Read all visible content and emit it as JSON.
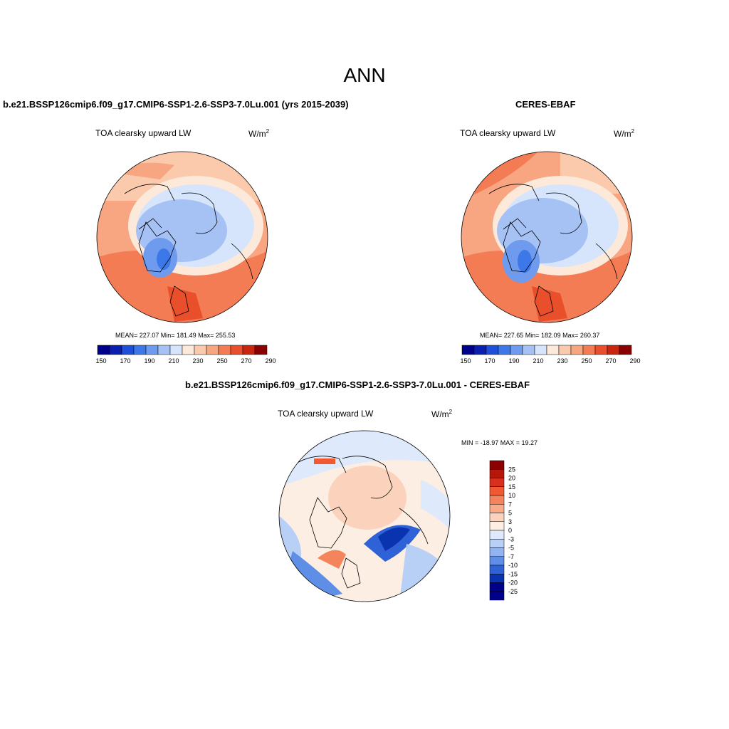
{
  "title": "ANN",
  "panels": {
    "model": {
      "title": "b.e21.BSSP126cmip6.f09_g17.CMIP6-SSP1-2.6-SSP3-7.0Lu.001 (yrs 2015-2039)",
      "variable": "TOA clearsky upward LW",
      "units": "W/m",
      "units_exp": "2",
      "stats": "MEAN= 227.07  Min= 181.49  Max= 255.53",
      "colorbar_ticks": [
        "150",
        "170",
        "190",
        "210",
        "230",
        "250",
        "270",
        "290"
      ]
    },
    "obs": {
      "title": "CERES-EBAF",
      "variable": "TOA clearsky upward LW",
      "units": "W/m",
      "units_exp": "2",
      "stats": "MEAN= 227.65  Min= 182.09  Max= 260.37",
      "colorbar_ticks": [
        "150",
        "170",
        "190",
        "210",
        "230",
        "250",
        "270",
        "290"
      ]
    },
    "diff": {
      "title": "b.e21.BSSP126cmip6.f09_g17.CMIP6-SSP1-2.6-SSP3-7.0Lu.001 - CERES-EBAF",
      "variable": "TOA clearsky upward LW",
      "units": "W/m",
      "units_exp": "2",
      "stats": "MIN = -18.97 MAX =  19.27",
      "colorbar_ticks": [
        "25",
        "20",
        "15",
        "10",
        "7",
        "5",
        "3",
        "0",
        "-3",
        "-5",
        "-7",
        "-10",
        "-15",
        "-20",
        "-25"
      ]
    }
  },
  "colors": {
    "abs_palette": [
      "#00008b",
      "#0a1fb0",
      "#1f4fd8",
      "#3d78e8",
      "#6f9bee",
      "#a6c1f3",
      "#d6e5fb",
      "#fde9d9",
      "#fbc9ac",
      "#f8a582",
      "#f47c55",
      "#ea4f2c",
      "#c9260f",
      "#8b0000"
    ],
    "diff_palette": [
      "#8b0000",
      "#b5180a",
      "#d7301f",
      "#ef5a32",
      "#f4845c",
      "#f7ab89",
      "#fbd3bd",
      "#fdeee4",
      "#deeafb",
      "#b8cff6",
      "#93b4f0",
      "#5f8ee6",
      "#2f62d6",
      "#0a33b0",
      "#00008b"
    ],
    "outline": "#000000"
  }
}
